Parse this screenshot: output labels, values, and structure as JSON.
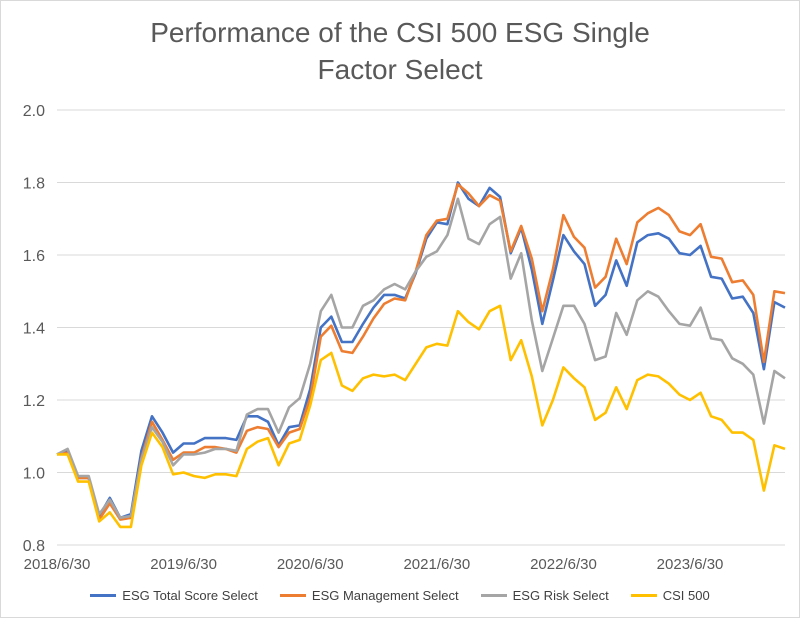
{
  "chart_data": {
    "type": "line",
    "title_line1": "Performance of the CSI 500 ESG Single",
    "title_line2": "Factor Select",
    "ylim": [
      0.8,
      2.0
    ],
    "yticks": [
      "0.8",
      "1.0",
      "1.2",
      "1.4",
      "1.6",
      "1.8",
      "2.0"
    ],
    "ytick_values": [
      0.8,
      1.0,
      1.2,
      1.4,
      1.6,
      1.8,
      2.0
    ],
    "grid": true,
    "legend_position": "bottom",
    "x_labels": [
      "2018/6/30",
      "2019/6/30",
      "2020/6/30",
      "2021/6/30",
      "2022/6/30",
      "2023/6/30"
    ],
    "x_label_indices": [
      0,
      12,
      24,
      36,
      48,
      60
    ],
    "series": [
      {
        "name": "ESG Total Score Select",
        "color": "#4472C4",
        "values": [
          1.05,
          1.06,
          0.985,
          0.985,
          0.88,
          0.93,
          0.875,
          0.885,
          1.06,
          1.155,
          1.11,
          1.055,
          1.08,
          1.08,
          1.095,
          1.095,
          1.095,
          1.09,
          1.155,
          1.155,
          1.14,
          1.075,
          1.125,
          1.13,
          1.23,
          1.4,
          1.43,
          1.36,
          1.36,
          1.41,
          1.455,
          1.49,
          1.49,
          1.48,
          1.55,
          1.645,
          1.69,
          1.685,
          1.8,
          1.755,
          1.735,
          1.785,
          1.76,
          1.605,
          1.675,
          1.56,
          1.41,
          1.53,
          1.655,
          1.61,
          1.575,
          1.46,
          1.49,
          1.585,
          1.515,
          1.635,
          1.655,
          1.66,
          1.645,
          1.605,
          1.6,
          1.625,
          1.54,
          1.535,
          1.48,
          1.485,
          1.44,
          1.285,
          1.47,
          1.455
        ]
      },
      {
        "name": "ESG Management Select",
        "color": "#ED7D31",
        "values": [
          1.05,
          1.055,
          0.985,
          0.985,
          0.87,
          0.915,
          0.87,
          0.875,
          1.04,
          1.14,
          1.09,
          1.035,
          1.055,
          1.055,
          1.07,
          1.07,
          1.065,
          1.055,
          1.115,
          1.125,
          1.12,
          1.07,
          1.11,
          1.12,
          1.205,
          1.375,
          1.405,
          1.335,
          1.33,
          1.375,
          1.425,
          1.465,
          1.48,
          1.475,
          1.555,
          1.655,
          1.695,
          1.7,
          1.795,
          1.77,
          1.735,
          1.765,
          1.75,
          1.61,
          1.68,
          1.59,
          1.445,
          1.56,
          1.71,
          1.65,
          1.62,
          1.51,
          1.54,
          1.645,
          1.575,
          1.69,
          1.715,
          1.73,
          1.71,
          1.665,
          1.655,
          1.685,
          1.595,
          1.59,
          1.525,
          1.53,
          1.49,
          1.305,
          1.5,
          1.495
        ]
      },
      {
        "name": "ESG Risk Select",
        "color": "#A5A5A5",
        "values": [
          1.05,
          1.065,
          0.99,
          0.99,
          0.885,
          0.925,
          0.875,
          0.88,
          1.035,
          1.125,
          1.085,
          1.02,
          1.05,
          1.05,
          1.055,
          1.065,
          1.065,
          1.06,
          1.16,
          1.175,
          1.175,
          1.11,
          1.18,
          1.205,
          1.3,
          1.445,
          1.49,
          1.4,
          1.4,
          1.46,
          1.475,
          1.505,
          1.52,
          1.505,
          1.555,
          1.595,
          1.61,
          1.655,
          1.755,
          1.645,
          1.63,
          1.685,
          1.705,
          1.535,
          1.605,
          1.42,
          1.28,
          1.37,
          1.46,
          1.46,
          1.41,
          1.31,
          1.32,
          1.44,
          1.38,
          1.475,
          1.5,
          1.485,
          1.445,
          1.41,
          1.405,
          1.455,
          1.37,
          1.365,
          1.315,
          1.3,
          1.27,
          1.135,
          1.28,
          1.26
        ]
      },
      {
        "name": "CSI 500",
        "color": "#FFC000",
        "values": [
          1.05,
          1.05,
          0.975,
          0.975,
          0.865,
          0.89,
          0.85,
          0.85,
          1.02,
          1.11,
          1.07,
          0.995,
          1.0,
          0.99,
          0.985,
          0.995,
          0.995,
          0.99,
          1.065,
          1.085,
          1.095,
          1.02,
          1.08,
          1.09,
          1.185,
          1.31,
          1.33,
          1.24,
          1.225,
          1.26,
          1.27,
          1.265,
          1.27,
          1.255,
          1.3,
          1.345,
          1.355,
          1.35,
          1.445,
          1.415,
          1.395,
          1.445,
          1.46,
          1.31,
          1.365,
          1.265,
          1.13,
          1.2,
          1.29,
          1.26,
          1.235,
          1.145,
          1.165,
          1.235,
          1.175,
          1.255,
          1.27,
          1.265,
          1.245,
          1.215,
          1.2,
          1.22,
          1.155,
          1.145,
          1.11,
          1.11,
          1.09,
          0.95,
          1.075,
          1.065
        ]
      }
    ]
  }
}
